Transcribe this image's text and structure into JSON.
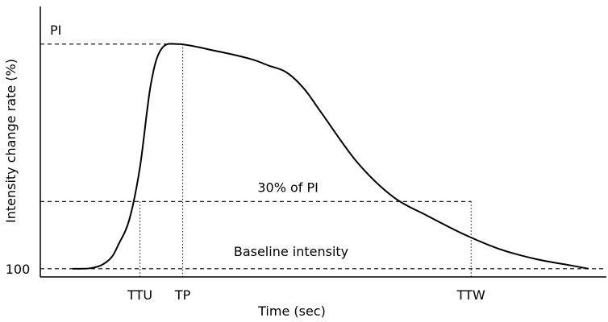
{
  "chart_data": {
    "type": "line",
    "title": "",
    "xlabel": "Time (sec)",
    "ylabel": "Intensity change rate (%)",
    "y_tick_labels": {
      "baseline": "100"
    },
    "series": [
      {
        "name": "Time-intensity curve",
        "x": [
          0,
          3,
          5,
          8,
          11,
          13,
          16,
          19,
          22,
          25,
          30,
          40,
          50,
          55,
          60,
          65,
          70,
          80,
          90,
          100,
          110,
          120,
          130,
          140,
          145
        ],
        "y": [
          100,
          100,
          100.3,
          102,
          107,
          115,
          130,
          162,
          212,
          234,
          237,
          233,
          228,
          224,
          220,
          210,
          195,
          165,
          144,
          132,
          121,
          112,
          106,
          102,
          100
        ]
      }
    ],
    "reference_lines": [
      {
        "kind": "horizontal",
        "y": 237,
        "label": "PI"
      },
      {
        "kind": "horizontal",
        "y": 141,
        "label": "30% of PI"
      },
      {
        "kind": "horizontal",
        "y": 100,
        "label": "Baseline intensity"
      }
    ],
    "markers": [
      {
        "label": "TTU",
        "x": 19
      },
      {
        "label": "TP",
        "x": 31
      },
      {
        "label": "TTW",
        "x": 112
      }
    ],
    "ylim": [
      95,
      260
    ],
    "xlim": [
      -9,
      150
    ],
    "grid": false
  }
}
